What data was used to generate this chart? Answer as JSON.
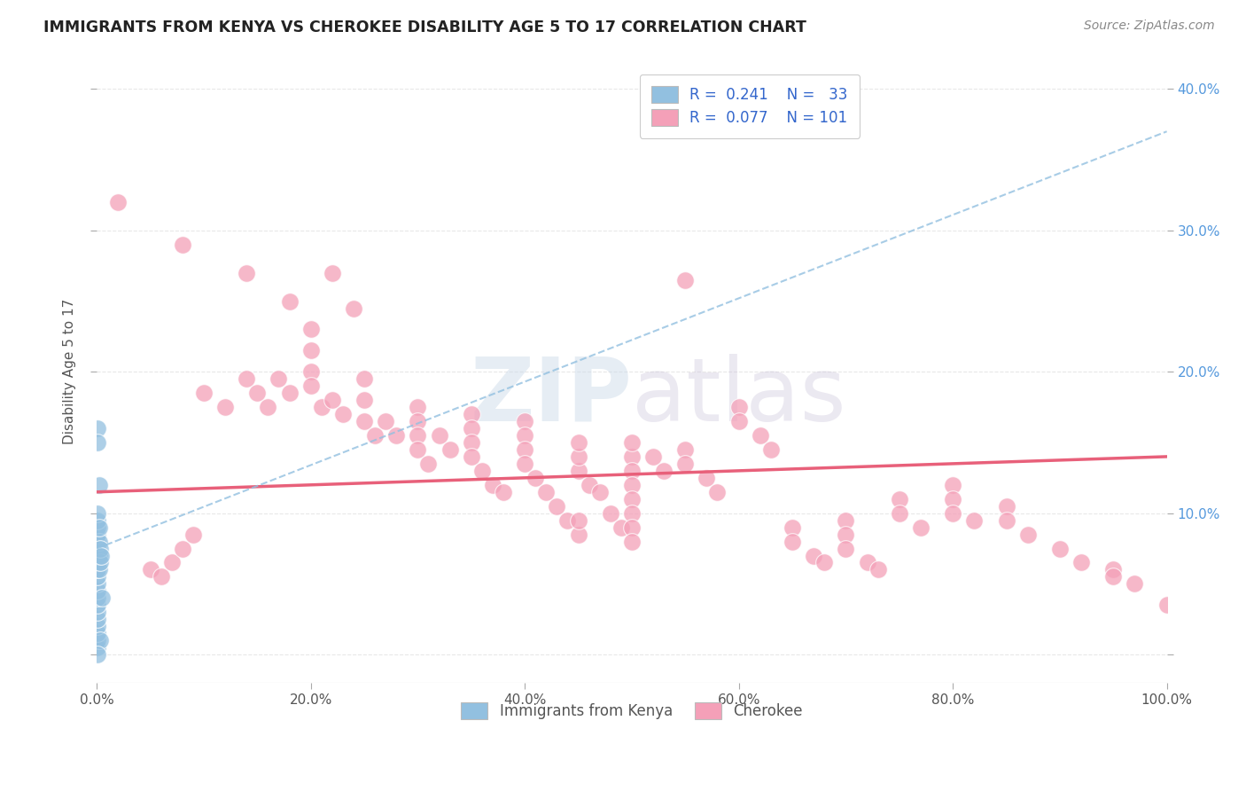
{
  "title": "IMMIGRANTS FROM KENYA VS CHEROKEE DISABILITY AGE 5 TO 17 CORRELATION CHART",
  "source": "Source: ZipAtlas.com",
  "ylabel": "Disability Age 5 to 17",
  "xlim": [
    0,
    1.0
  ],
  "ylim": [
    -0.02,
    0.42
  ],
  "x_ticks": [
    0.0,
    0.2,
    0.4,
    0.6,
    0.8,
    1.0
  ],
  "x_tick_labels": [
    "0.0%",
    "20.0%",
    "40.0%",
    "60.0%",
    "80.0%",
    "100.0%"
  ],
  "y_ticks": [
    0.0,
    0.1,
    0.2,
    0.3,
    0.4
  ],
  "y_right_labels": [
    "",
    "10.0%",
    "20.0%",
    "30.0%",
    "40.0%"
  ],
  "color_kenya": "#92c0e0",
  "color_cherokee": "#f4a0b8",
  "color_kenya_line": "#92c0e0",
  "color_cherokee_line": "#e8607a",
  "watermark": "ZIPatlas",
  "kenya_scatter": [
    [
      0.001,
      0.005
    ],
    [
      0.001,
      0.01
    ],
    [
      0.001,
      0.015
    ],
    [
      0.001,
      0.02
    ],
    [
      0.001,
      0.025
    ],
    [
      0.001,
      0.03
    ],
    [
      0.001,
      0.035
    ],
    [
      0.001,
      0.04
    ],
    [
      0.001,
      0.045
    ],
    [
      0.001,
      0.05
    ],
    [
      0.001,
      0.055
    ],
    [
      0.001,
      0.06
    ],
    [
      0.001,
      0.065
    ],
    [
      0.001,
      0.07
    ],
    [
      0.001,
      0.075
    ],
    [
      0.001,
      0.08
    ],
    [
      0.001,
      0.085
    ],
    [
      0.001,
      0.09
    ],
    [
      0.001,
      0.095
    ],
    [
      0.001,
      0.1
    ],
    [
      0.002,
      0.06
    ],
    [
      0.002,
      0.07
    ],
    [
      0.002,
      0.08
    ],
    [
      0.002,
      0.09
    ],
    [
      0.003,
      0.065
    ],
    [
      0.003,
      0.075
    ],
    [
      0.004,
      0.07
    ],
    [
      0.001,
      0.16
    ],
    [
      0.001,
      0.15
    ],
    [
      0.002,
      0.12
    ],
    [
      0.003,
      0.01
    ],
    [
      0.005,
      0.04
    ],
    [
      0.001,
      0.0
    ]
  ],
  "cherokee_scatter": [
    [
      0.02,
      0.32
    ],
    [
      0.08,
      0.29
    ],
    [
      0.14,
      0.27
    ],
    [
      0.18,
      0.25
    ],
    [
      0.22,
      0.27
    ],
    [
      0.24,
      0.245
    ],
    [
      0.1,
      0.185
    ],
    [
      0.12,
      0.175
    ],
    [
      0.14,
      0.195
    ],
    [
      0.15,
      0.185
    ],
    [
      0.16,
      0.175
    ],
    [
      0.17,
      0.195
    ],
    [
      0.18,
      0.185
    ],
    [
      0.2,
      0.23
    ],
    [
      0.2,
      0.215
    ],
    [
      0.2,
      0.2
    ],
    [
      0.2,
      0.19
    ],
    [
      0.21,
      0.175
    ],
    [
      0.22,
      0.18
    ],
    [
      0.23,
      0.17
    ],
    [
      0.25,
      0.165
    ],
    [
      0.25,
      0.18
    ],
    [
      0.25,
      0.195
    ],
    [
      0.26,
      0.155
    ],
    [
      0.27,
      0.165
    ],
    [
      0.28,
      0.155
    ],
    [
      0.3,
      0.175
    ],
    [
      0.3,
      0.165
    ],
    [
      0.3,
      0.155
    ],
    [
      0.3,
      0.145
    ],
    [
      0.31,
      0.135
    ],
    [
      0.32,
      0.155
    ],
    [
      0.33,
      0.145
    ],
    [
      0.35,
      0.17
    ],
    [
      0.35,
      0.16
    ],
    [
      0.35,
      0.15
    ],
    [
      0.35,
      0.14
    ],
    [
      0.36,
      0.13
    ],
    [
      0.37,
      0.12
    ],
    [
      0.38,
      0.115
    ],
    [
      0.4,
      0.165
    ],
    [
      0.4,
      0.155
    ],
    [
      0.4,
      0.145
    ],
    [
      0.4,
      0.135
    ],
    [
      0.41,
      0.125
    ],
    [
      0.42,
      0.115
    ],
    [
      0.43,
      0.105
    ],
    [
      0.44,
      0.095
    ],
    [
      0.45,
      0.085
    ],
    [
      0.45,
      0.095
    ],
    [
      0.45,
      0.13
    ],
    [
      0.45,
      0.14
    ],
    [
      0.45,
      0.15
    ],
    [
      0.46,
      0.12
    ],
    [
      0.47,
      0.115
    ],
    [
      0.48,
      0.1
    ],
    [
      0.49,
      0.09
    ],
    [
      0.5,
      0.14
    ],
    [
      0.5,
      0.15
    ],
    [
      0.5,
      0.13
    ],
    [
      0.5,
      0.12
    ],
    [
      0.5,
      0.11
    ],
    [
      0.5,
      0.1
    ],
    [
      0.5,
      0.09
    ],
    [
      0.5,
      0.08
    ],
    [
      0.52,
      0.14
    ],
    [
      0.53,
      0.13
    ],
    [
      0.55,
      0.265
    ],
    [
      0.55,
      0.145
    ],
    [
      0.55,
      0.135
    ],
    [
      0.57,
      0.125
    ],
    [
      0.58,
      0.115
    ],
    [
      0.6,
      0.175
    ],
    [
      0.6,
      0.165
    ],
    [
      0.62,
      0.155
    ],
    [
      0.63,
      0.145
    ],
    [
      0.65,
      0.09
    ],
    [
      0.65,
      0.08
    ],
    [
      0.67,
      0.07
    ],
    [
      0.68,
      0.065
    ],
    [
      0.7,
      0.095
    ],
    [
      0.7,
      0.085
    ],
    [
      0.7,
      0.075
    ],
    [
      0.72,
      0.065
    ],
    [
      0.73,
      0.06
    ],
    [
      0.75,
      0.11
    ],
    [
      0.75,
      0.1
    ],
    [
      0.77,
      0.09
    ],
    [
      0.8,
      0.12
    ],
    [
      0.8,
      0.11
    ],
    [
      0.8,
      0.1
    ],
    [
      0.82,
      0.095
    ],
    [
      0.85,
      0.105
    ],
    [
      0.85,
      0.095
    ],
    [
      0.87,
      0.085
    ],
    [
      0.9,
      0.075
    ],
    [
      0.92,
      0.065
    ],
    [
      0.95,
      0.06
    ],
    [
      0.95,
      0.055
    ],
    [
      0.97,
      0.05
    ],
    [
      1.0,
      0.035
    ],
    [
      0.05,
      0.06
    ],
    [
      0.06,
      0.055
    ],
    [
      0.07,
      0.065
    ],
    [
      0.08,
      0.075
    ],
    [
      0.09,
      0.085
    ]
  ],
  "background_color": "#ffffff",
  "grid_color": "#e8e8e8"
}
